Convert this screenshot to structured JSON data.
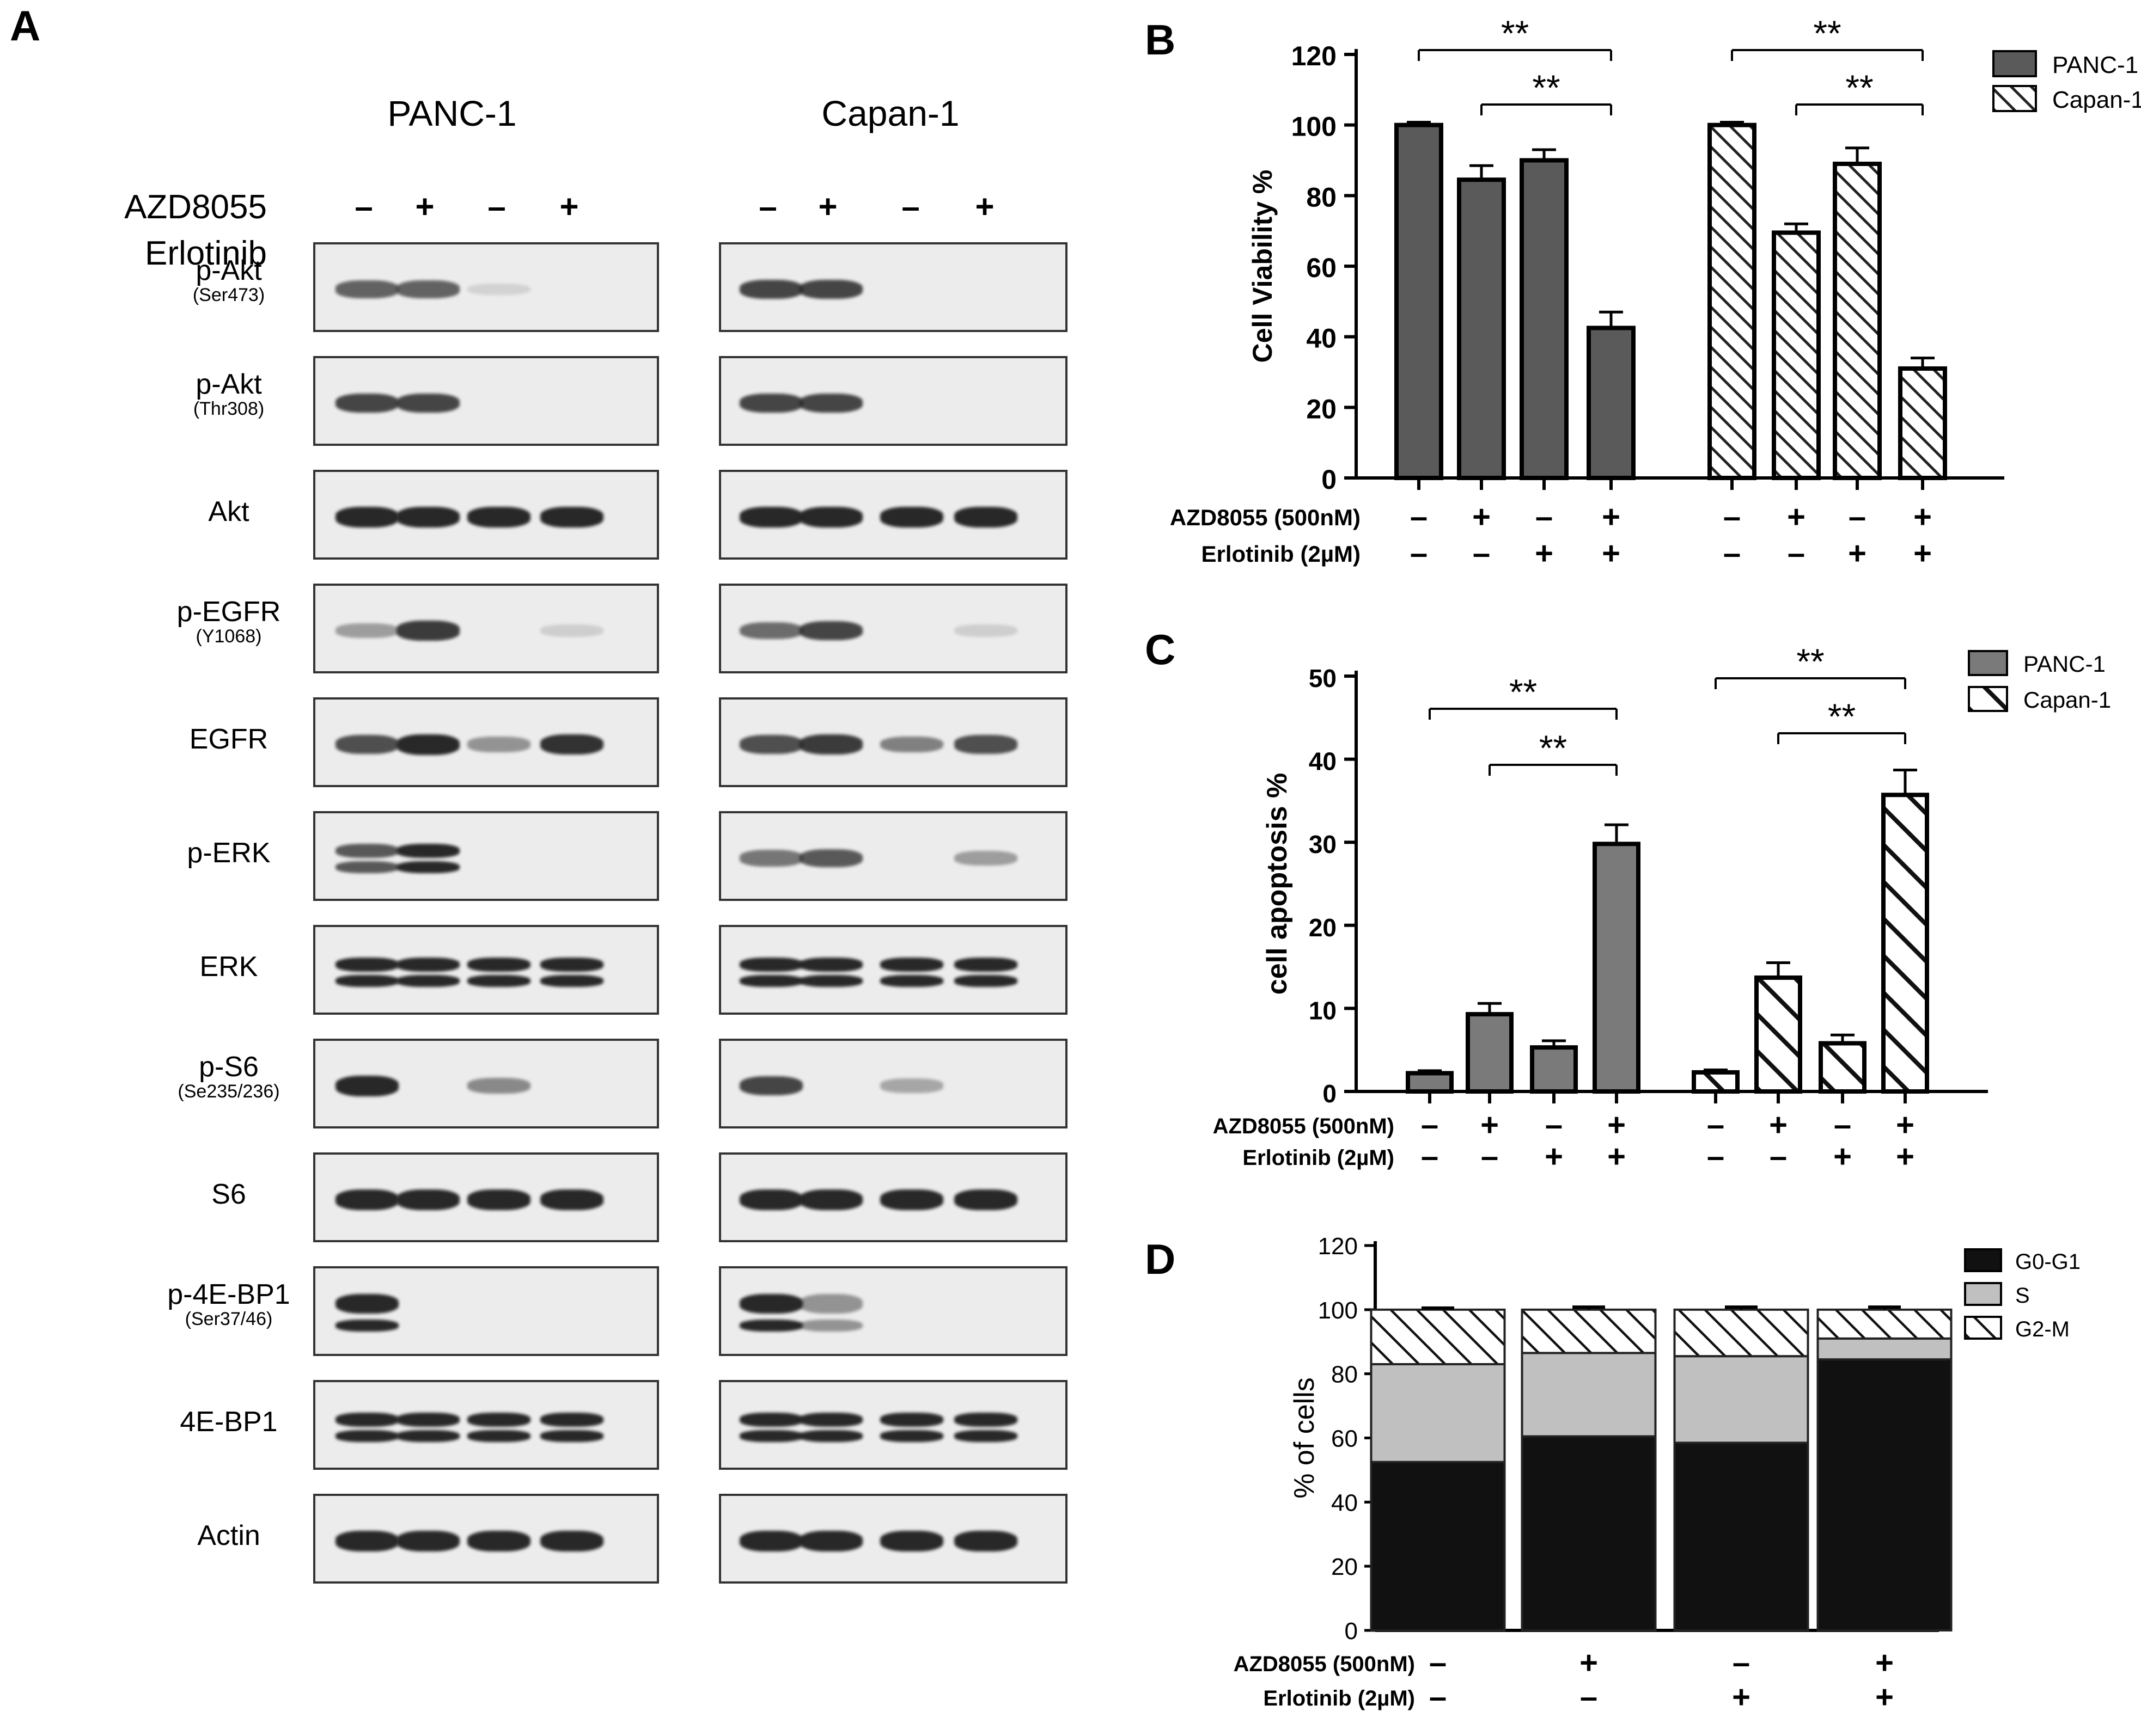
{
  "panels": {
    "a": "A",
    "b": "B",
    "c": "C",
    "d": "D"
  },
  "blot": {
    "cell_lines": [
      "PANC-1",
      "Capan-1"
    ],
    "treatments": [
      {
        "name": "AZD8055",
        "signs": [
          "–",
          "+",
          "–",
          "+"
        ]
      },
      {
        "name": "Erlotinib",
        "signs": [
          "–",
          "–",
          "+",
          "+"
        ]
      }
    ],
    "rows": [
      {
        "label": "p-Akt",
        "sub": "(Ser473)"
      },
      {
        "label": "p-Akt",
        "sub": "(Thr308)"
      },
      {
        "label": "Akt",
        "sub": ""
      },
      {
        "label": "p-EGFR",
        "sub": "(Y1068)"
      },
      {
        "label": "EGFR",
        "sub": ""
      },
      {
        "label": "p-ERK",
        "sub": ""
      },
      {
        "label": "ERK",
        "sub": ""
      },
      {
        "label": "p-S6",
        "sub": "(Se235/236)"
      },
      {
        "label": "S6",
        "sub": ""
      },
      {
        "label": "p-4E-BP1",
        "sub": "(Ser37/46)"
      },
      {
        "label": "4E-BP1",
        "sub": ""
      },
      {
        "label": "Actin",
        "sub": ""
      }
    ],
    "band_intensity": {
      "PANC-1": [
        [
          0.7,
          0.7,
          0.1,
          0
        ],
        [
          0.85,
          0.85,
          0,
          0
        ],
        [
          1,
          1,
          1,
          1
        ],
        [
          0.4,
          0.9,
          0,
          0.15
        ],
        [
          0.8,
          1,
          0.45,
          0.95
        ],
        [
          0.75,
          1,
          0,
          0
        ],
        [
          1,
          1,
          1,
          1
        ],
        [
          1,
          0,
          0.5,
          0
        ],
        [
          1,
          1,
          1,
          1
        ],
        [
          1,
          0,
          0,
          0
        ],
        [
          1,
          1,
          1,
          1
        ],
        [
          1,
          1,
          1,
          1
        ]
      ],
      "Capan-1": [
        [
          0.85,
          0.85,
          0,
          0
        ],
        [
          0.85,
          0.85,
          0,
          0
        ],
        [
          1,
          1,
          1,
          1
        ],
        [
          0.65,
          0.85,
          0,
          0.15
        ],
        [
          0.8,
          0.9,
          0.55,
          0.8
        ],
        [
          0.6,
          0.75,
          0,
          0.4
        ],
        [
          1,
          1,
          1,
          1
        ],
        [
          0.85,
          0,
          0.35,
          0
        ],
        [
          1,
          1,
          1,
          1
        ],
        [
          1,
          0.45,
          0,
          0
        ],
        [
          1,
          1,
          1,
          1
        ],
        [
          1,
          1,
          1,
          1
        ]
      ]
    }
  },
  "chart_data": [
    {
      "type": "bar",
      "panel": "B",
      "ylabel": "Cell Viability %",
      "ylim": [
        0,
        120
      ],
      "yticks": [
        0,
        20,
        40,
        60,
        80,
        100,
        120
      ],
      "series": [
        {
          "name": "PANC-1",
          "values": [
            100,
            84.5,
            90,
            42.5
          ],
          "errors": [
            0.8,
            4,
            3,
            4.5
          ],
          "fill": "#5a5a5a"
        },
        {
          "name": "Capan-1",
          "values": [
            100,
            69.5,
            89,
            31
          ],
          "errors": [
            0.8,
            2.5,
            4.5,
            3
          ],
          "fill": "hatch"
        }
      ],
      "conditions": [
        {
          "name": "AZD8055 (500nM)",
          "signs": [
            "–",
            "+",
            "–",
            "+"
          ]
        },
        {
          "name": "Erlotinib (2µM)",
          "signs": [
            "–",
            "–",
            "+",
            "+"
          ]
        }
      ],
      "significance": [
        {
          "series": 0,
          "from": 0,
          "to": 3,
          "label": "**"
        },
        {
          "series": 0,
          "from": 1,
          "to": 3,
          "label": "**"
        },
        {
          "series": 1,
          "from": 0,
          "to": 3,
          "label": "**"
        },
        {
          "series": 1,
          "from": 1,
          "to": 3,
          "label": "**"
        }
      ],
      "legend": "top-right"
    },
    {
      "type": "bar",
      "panel": "C",
      "ylabel": "cell apoptosis %",
      "ylim": [
        0,
        50
      ],
      "yticks": [
        0,
        10,
        20,
        30,
        40,
        50
      ],
      "series": [
        {
          "name": "PANC-1",
          "values": [
            2.2,
            9.3,
            5.3,
            29.8
          ],
          "errors": [
            0.3,
            1.3,
            0.8,
            2.3
          ],
          "fill": "#7a7a7a"
        },
        {
          "name": "Capan-1",
          "values": [
            2.3,
            13.7,
            5.8,
            35.7
          ],
          "errors": [
            0.3,
            1.8,
            1.0,
            3.0
          ],
          "fill": "hatch"
        }
      ],
      "conditions": [
        {
          "name": "AZD8055 (500nM)",
          "signs": [
            "–",
            "+",
            "–",
            "+"
          ]
        },
        {
          "name": "Erlotinib (2µM)",
          "signs": [
            "–",
            "–",
            "+",
            "+"
          ]
        }
      ],
      "significance": [
        {
          "series": 0,
          "from": 0,
          "to": 3,
          "label": "**"
        },
        {
          "series": 0,
          "from": 1,
          "to": 3,
          "label": "**"
        },
        {
          "series": 1,
          "from": 0,
          "to": 3,
          "label": "**"
        },
        {
          "series": 1,
          "from": 1,
          "to": 3,
          "label": "**"
        }
      ],
      "legend": "top-right"
    },
    {
      "type": "bar",
      "stacked": true,
      "panel": "D",
      "ylabel": "% of cells",
      "ylim": [
        0,
        120
      ],
      "yticks": [
        0,
        20,
        40,
        60,
        80,
        100,
        120
      ],
      "series": [
        {
          "name": "G0-G1",
          "values": [
            52.5,
            60.5,
            58.5,
            84.5
          ],
          "errors": [
            1.5,
            2,
            2.5,
            2.5
          ],
          "fill": "#111111"
        },
        {
          "name": "S",
          "values": [
            30.5,
            26,
            27,
            6.5
          ],
          "fill": "#c0c0c0"
        },
        {
          "name": "G2-M",
          "values": [
            17,
            13.5,
            14.5,
            9
          ],
          "errors": [
            0.5,
            0.8,
            0.8,
            0.8
          ],
          "fill": "hatch"
        }
      ],
      "conditions": [
        {
          "name": "AZD8055 (500nM)",
          "signs": [
            "–",
            "+",
            "–",
            "+"
          ]
        },
        {
          "name": "Erlotinib (2µM)",
          "signs": [
            "–",
            "–",
            "+",
            "+"
          ]
        }
      ],
      "legend": "top-right"
    }
  ]
}
